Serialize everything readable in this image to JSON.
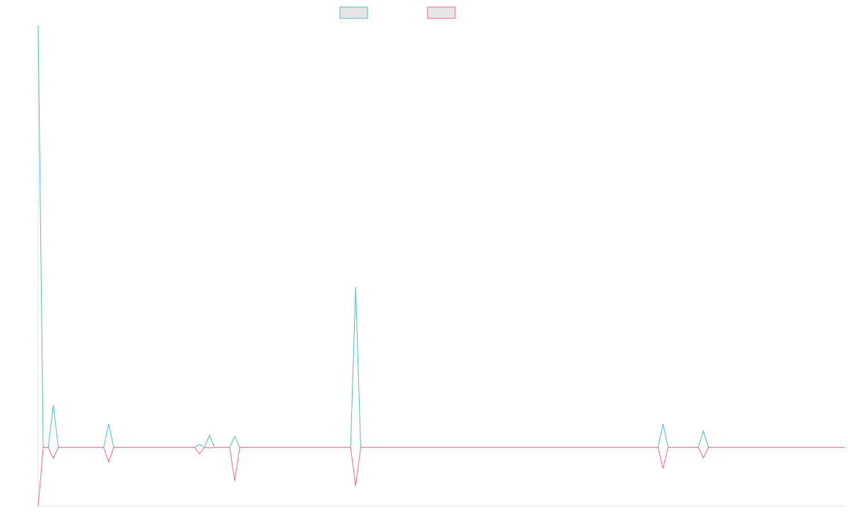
{
  "chart_data": {
    "type": "line",
    "x": [
      0,
      1,
      2,
      3,
      4,
      13,
      14,
      15,
      31,
      32,
      33,
      34,
      35,
      38,
      39,
      40,
      62,
      63,
      64,
      123,
      124,
      125,
      131,
      132,
      133,
      160
    ],
    "xlim": [
      0,
      160
    ],
    "ylim": [
      -10,
      72
    ],
    "series": [
      {
        "color": "#4bc0c0",
        "values": [
          72,
          0,
          0,
          7.2,
          0,
          0,
          4,
          0,
          0,
          0.5,
          0,
          2.1,
          0,
          0,
          1.9,
          0,
          0,
          27.4,
          0,
          0,
          4,
          0,
          0,
          2.8,
          0,
          0
        ]
      },
      {
        "color": "#ff6384",
        "values": [
          -10,
          0,
          0,
          -1.9,
          0,
          0,
          -2.5,
          0,
          0,
          -1.1,
          0,
          -0.1,
          0,
          0,
          -5.7,
          0,
          0,
          -6.6,
          0,
          0,
          -3.6,
          0,
          0,
          -1.8,
          0,
          0
        ]
      }
    ]
  }
}
